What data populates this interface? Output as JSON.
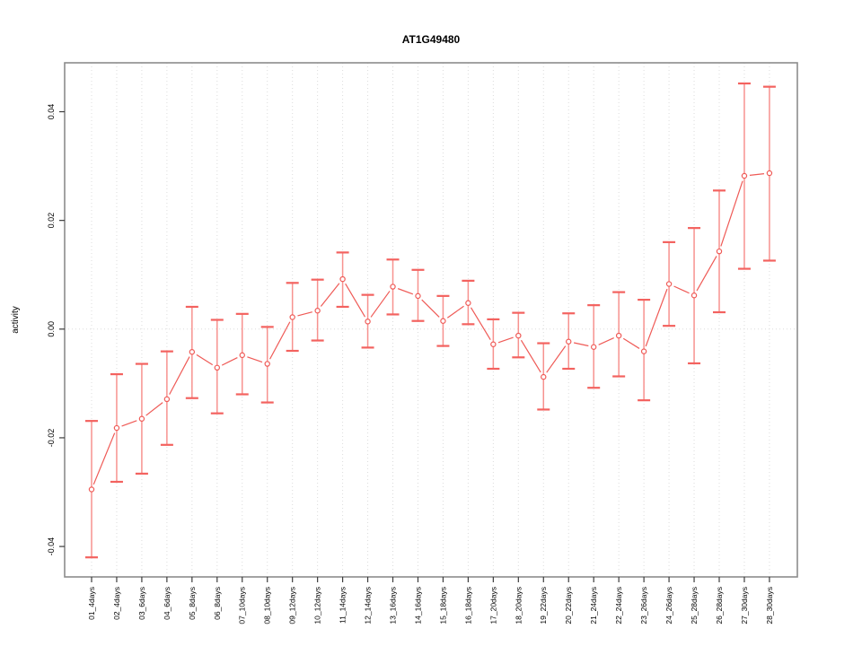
{
  "figure": {
    "title": "AT1G49480"
  },
  "chart_data": {
    "type": "line",
    "subtype": "points-with-error-bars",
    "title": "AT1G49480",
    "xlabel": "",
    "ylabel": "activity",
    "legend": "none",
    "grid": "dotted vertical gridline at each category; dotted horizontal line at y=0",
    "ylim": [
      -0.0456,
      0.049
    ],
    "yticks": [
      -0.04,
      -0.02,
      0.0,
      0.02,
      0.04
    ],
    "categories": [
      "01_4days",
      "02_4days",
      "03_6days",
      "04_6days",
      "05_8days",
      "06_8days",
      "07_10days",
      "08_10days",
      "09_12days",
      "10_12days",
      "11_14days",
      "12_14days",
      "13_16days",
      "14_16days",
      "15_18days",
      "16_18days",
      "17_20days",
      "18_20days",
      "19_22days",
      "20_22days",
      "21_24days",
      "22_24days",
      "23_26days",
      "24_26days",
      "25_28days",
      "26_28days",
      "27_30days",
      "28_30days"
    ],
    "series": [
      {
        "name": "activity",
        "values": [
          -0.0295,
          -0.0182,
          -0.0165,
          -0.0129,
          -0.0042,
          -0.0071,
          -0.0048,
          -0.0064,
          0.0022,
          0.0034,
          0.0092,
          0.0014,
          0.0078,
          0.0061,
          0.0015,
          0.0048,
          -0.0028,
          -0.0012,
          -0.0088,
          -0.0023,
          -0.0033,
          -0.0012,
          -0.0041,
          0.0083,
          0.0062,
          0.0143,
          0.0282,
          0.0287
        ],
        "err_low": [
          -0.042,
          -0.0281,
          -0.0266,
          -0.0213,
          -0.0127,
          -0.0155,
          -0.012,
          -0.0135,
          -0.004,
          -0.0021,
          0.0041,
          -0.0034,
          0.0027,
          0.0015,
          -0.0031,
          0.0009,
          -0.0073,
          -0.0052,
          -0.0148,
          -0.0073,
          -0.0108,
          -0.0087,
          -0.0131,
          0.0006,
          -0.0063,
          0.0031,
          0.0111,
          0.0126
        ],
        "err_high": [
          -0.0169,
          -0.0083,
          -0.0064,
          -0.0041,
          0.0041,
          0.0017,
          0.0028,
          0.0004,
          0.0085,
          0.0091,
          0.0141,
          0.0063,
          0.0128,
          0.0109,
          0.0061,
          0.0089,
          0.0018,
          0.003,
          -0.0026,
          0.0029,
          0.0044,
          0.0068,
          0.0054,
          0.016,
          0.0186,
          0.0255,
          0.0452,
          0.0446
        ]
      }
    ],
    "colors": {
      "series": "#ef5a56",
      "errorbar_line": "#f7928f",
      "errorbar_cap": "#f3625f",
      "grid": "#dcdcdc",
      "box": "#8c8c8c",
      "tick": "#3c3c3c",
      "text": "#000000"
    }
  }
}
